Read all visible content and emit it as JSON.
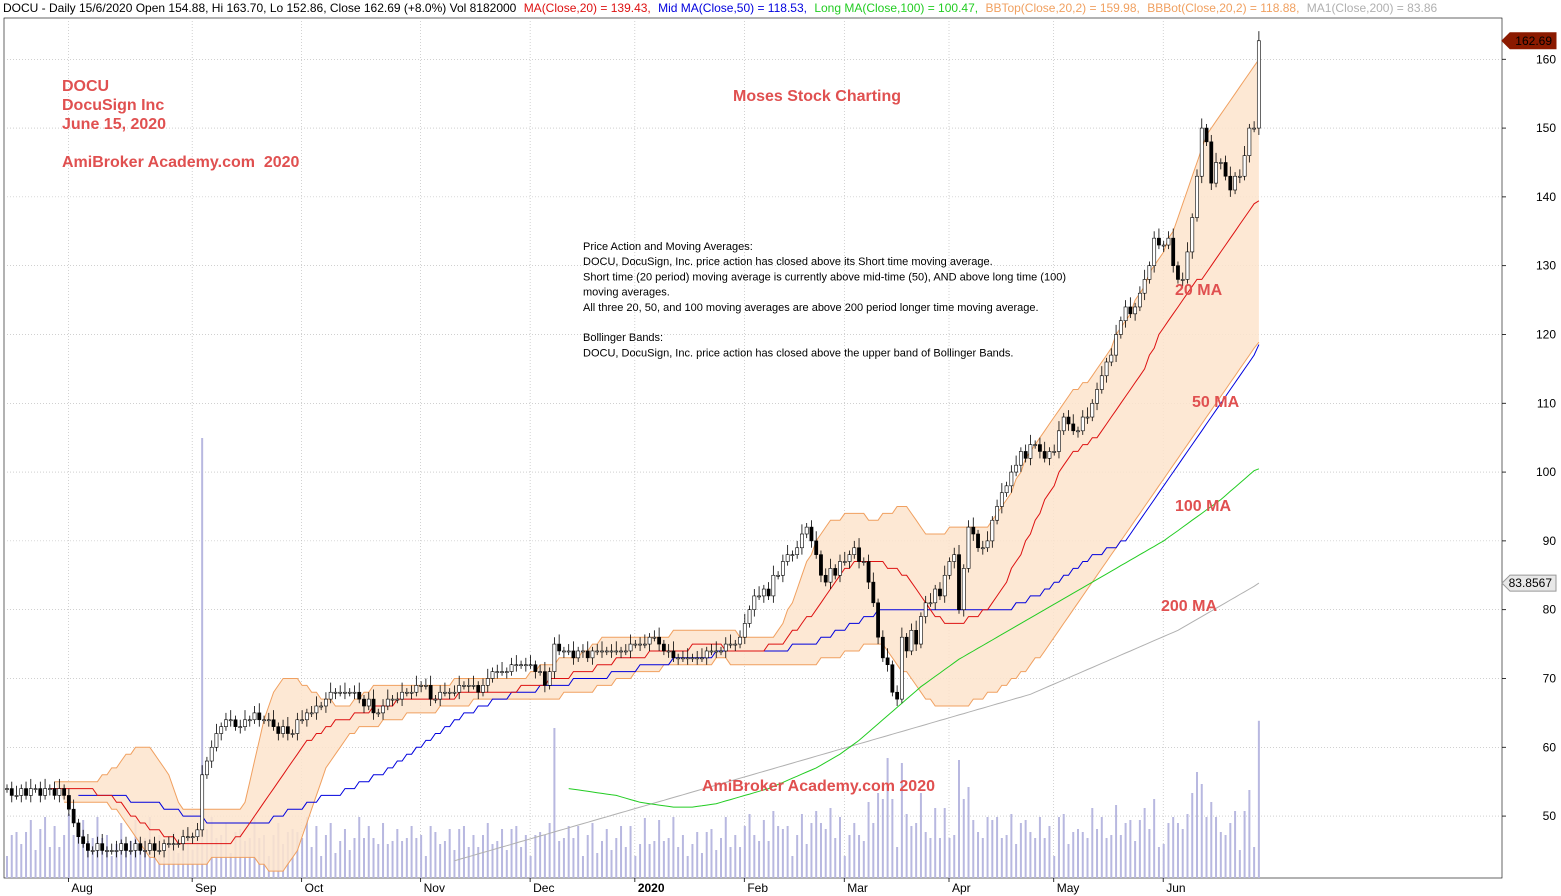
{
  "chart_data": {
    "type": "candlestick",
    "symbol": "DOCU",
    "header": {
      "prefix": "DOCU - Daily 15/6/2020 Open 154.88, Hi 163.70, Lo 152.86, Close 162.69 (+8.0%) Vol 8182000",
      "ma20": "MA(Close,20) = 139.43,",
      "ma50": "Mid MA(Close,50) = 118.53,",
      "ma100": "Long MA(Close,100) = 100.47,",
      "bbtop": "BBTop(Close,20,2) = 159.98,",
      "bbbot": "BBBot(Close,20,2) = 118.88,",
      "ma200": "MA1(Close,200) = 83.86"
    },
    "titles": {
      "symbol": "DOCU",
      "company": "DocuSign Inc",
      "date": "June 15, 2020",
      "site": "AmiBroker Academy.com  2020",
      "brand": "Moses Stock Charting",
      "watermark": "AmiBroker Academy.com 2020"
    },
    "notes": [
      "Price Action and Moving Averages:",
      "DOCU, DocuSign, Inc. price action has closed above its Short time moving average.",
      "Short time (20 period)  moving average is currently above mid-time (50), AND above long time (100)",
      "moving averages.",
      " All three 20, 50, and 100 moving averages are above 200 period longer time moving average.",
      "",
      "Bollinger Bands:",
      "DOCU, DocuSign, Inc. price action has closed above the upper band of Bollinger Bands."
    ],
    "line_labels": [
      "20 MA",
      "50 MA",
      "100 MA",
      "200 MA"
    ],
    "price_badges": [
      {
        "label": "162.69",
        "value": 162.69
      },
      {
        "label": "83.8567",
        "value": 83.8567
      }
    ],
    "y_axis": {
      "ticks": [
        50,
        60,
        70,
        80,
        90,
        100,
        110,
        120,
        130,
        140,
        150,
        160
      ],
      "ylim": [
        41,
        166
      ]
    },
    "x_axis": {
      "labels": [
        "Aug",
        "Sep",
        "Oct",
        "Nov",
        "Dec",
        "2020",
        "Feb",
        "Mar",
        "Apr",
        "May",
        "Jun"
      ],
      "label_bars": [
        15,
        41,
        64,
        89,
        112,
        134,
        157,
        178,
        200,
        222,
        245
      ]
    },
    "colors": {
      "ma20": "#dd1111",
      "ma50": "#0000dd",
      "ma100": "#22cc22",
      "ma200": "#b0b0b0",
      "bbtop": "#f0a060",
      "bbbot": "#f0a060",
      "band_fill": "#fde4cc",
      "volume": "#b8b8e0",
      "up_candle": "#ffffff",
      "down_candle": "#000000",
      "grid": "#b4b4b4"
    },
    "closes": [
      54,
      53,
      53,
      54,
      53,
      54,
      54,
      53,
      54,
      54,
      53,
      54,
      53,
      51,
      49,
      47,
      46,
      45,
      45,
      46,
      45,
      45,
      45,
      45,
      46,
      45,
      45,
      46,
      45,
      45,
      46,
      45,
      45,
      46,
      46,
      46,
      46,
      47,
      47,
      47,
      48,
      56,
      58,
      60,
      62,
      63,
      64,
      64,
      63,
      63,
      64,
      64,
      65,
      64,
      64,
      64,
      63,
      62,
      63,
      62,
      62,
      64,
      64,
      65,
      65,
      66,
      66,
      67,
      68,
      68,
      68,
      68,
      68,
      68,
      67,
      66,
      67,
      65,
      65,
      66,
      67,
      67,
      67,
      68,
      68,
      68,
      69,
      69,
      69,
      67,
      67,
      68,
      68,
      68,
      68,
      69,
      69,
      69,
      69,
      68,
      69,
      70,
      71,
      71,
      71,
      71,
      72,
      72,
      72,
      72,
      72,
      71,
      71,
      69,
      71,
      75,
      74,
      74,
      74,
      73,
      74,
      74,
      73,
      74,
      74,
      74,
      74,
      74,
      74,
      74,
      74,
      75,
      75,
      75,
      75,
      76,
      76,
      75,
      74,
      74,
      73,
      73,
      73,
      73,
      73,
      73,
      73,
      74,
      74,
      74,
      74,
      75,
      75,
      75,
      76,
      78,
      80,
      82,
      82,
      83,
      82,
      85,
      85,
      87,
      88,
      88,
      89,
      91,
      92,
      90,
      88,
      85,
      84,
      86,
      85,
      87,
      87,
      88,
      89,
      87,
      87,
      84,
      81,
      76,
      73,
      72,
      68,
      67,
      76,
      74,
      77,
      75,
      79,
      81,
      81,
      83,
      82,
      85,
      87,
      88,
      80,
      86,
      92,
      91,
      89,
      89,
      90,
      93,
      95,
      97,
      98,
      100,
      101,
      103,
      102,
      104,
      104,
      103,
      102,
      103,
      103,
      106,
      108,
      107,
      106,
      106,
      108,
      108,
      110,
      112,
      114,
      116,
      117,
      120,
      122,
      124,
      123,
      124,
      126,
      128,
      130,
      134,
      133,
      133,
      134,
      130,
      128,
      128,
      132,
      137,
      143,
      150,
      148,
      142,
      145,
      145,
      143,
      141,
      143,
      143,
      146,
      150,
      150,
      162.69
    ],
    "ma20": [
      54,
      54,
      54,
      54,
      54,
      54,
      54,
      54,
      54,
      54,
      53,
      53,
      53,
      53,
      52,
      52,
      51,
      50,
      50,
      49,
      49,
      48,
      48,
      48,
      47,
      47,
      47,
      46,
      46,
      46,
      46,
      46,
      46,
      46,
      46,
      46,
      46,
      46,
      46,
      47,
      47,
      48,
      49,
      50,
      51,
      52,
      53,
      54,
      55,
      56,
      57,
      58,
      59,
      60,
      61,
      61,
      62,
      62,
      63,
      63,
      64,
      64,
      64,
      64,
      65,
      65,
      65,
      65,
      66,
      66,
      66,
      66,
      66,
      67,
      67,
      67,
      67,
      67,
      67,
      67,
      67,
      67,
      67,
      67,
      67,
      67,
      68,
      68,
      68,
      68,
      68,
      68,
      68,
      68,
      68,
      68,
      68,
      68,
      68,
      69,
      69,
      69,
      69,
      69,
      69,
      70,
      70,
      70,
      70,
      70,
      71,
      71,
      71,
      71,
      71,
      72,
      72,
      72,
      72,
      73,
      73,
      73,
      73,
      73,
      73,
      73,
      74,
      74,
      74,
      74,
      74,
      74,
      74,
      74,
      74,
      75,
      75,
      75,
      75,
      75,
      75,
      75,
      74,
      74,
      74,
      74,
      74,
      74,
      74,
      74,
      74,
      75,
      75,
      75,
      75,
      76,
      77,
      77,
      78,
      79,
      79,
      80,
      81,
      82,
      83,
      84,
      85,
      86,
      86,
      87,
      87,
      87,
      87,
      87,
      87,
      87,
      86,
      86,
      86,
      85,
      85,
      84,
      83,
      82,
      81,
      80,
      79,
      79,
      78,
      78,
      78,
      78,
      78,
      79,
      79,
      79,
      80,
      80,
      81,
      82,
      83,
      84,
      86,
      87,
      88,
      90,
      91,
      93,
      94,
      96,
      97,
      98,
      100,
      101,
      102,
      103,
      103,
      104,
      104,
      105,
      105,
      106,
      107,
      108,
      109,
      110,
      111,
      112,
      113,
      114,
      115,
      117,
      118,
      120,
      121,
      122,
      123,
      124,
      125,
      126,
      127,
      128,
      128,
      129,
      130,
      131,
      132,
      133,
      134,
      135,
      136,
      137,
      138,
      139,
      139.43
    ],
    "ma50": [
      53,
      53,
      53,
      53,
      53,
      53,
      53,
      53,
      53,
      53,
      53,
      52,
      52,
      52,
      52,
      52,
      52,
      52,
      51,
      51,
      51,
      51,
      50,
      50,
      50,
      50,
      50,
      49,
      49,
      49,
      49,
      49,
      49,
      49,
      49,
      49,
      49,
      49,
      49,
      49,
      49,
      50,
      50,
      50,
      51,
      51,
      51,
      51,
      52,
      52,
      52,
      53,
      53,
      53,
      53,
      53,
      54,
      54,
      54,
      55,
      55,
      55,
      56,
      56,
      56,
      57,
      57,
      58,
      58,
      59,
      59,
      60,
      60,
      61,
      61,
      62,
      62,
      63,
      63,
      64,
      64,
      65,
      65,
      65,
      66,
      66,
      66,
      67,
      67,
      67,
      67,
      68,
      68,
      68,
      68,
      68,
      68,
      69,
      69,
      69,
      69,
      69,
      69,
      69,
      70,
      70,
      70,
      70,
      70,
      70,
      70,
      70,
      71,
      71,
      71,
      71,
      71,
      71,
      72,
      72,
      72,
      72,
      72,
      72,
      72,
      73,
      73,
      73,
      73,
      73,
      73,
      73,
      73,
      73,
      74,
      74,
      74,
      74,
      74,
      74,
      74,
      74,
      74,
      74,
      74,
      74,
      74,
      74,
      74,
      74,
      75,
      75,
      75,
      75,
      75,
      75,
      76,
      76,
      76,
      77,
      77,
      77,
      78,
      78,
      78,
      79,
      79,
      79,
      80,
      80,
      80,
      80,
      80,
      80,
      80,
      80,
      80,
      80,
      80,
      80,
      80,
      80,
      80,
      80,
      80,
      80,
      80,
      80,
      80,
      80,
      80,
      80,
      80,
      80,
      80,
      80,
      80,
      81,
      81,
      81,
      82,
      82,
      82,
      83,
      83,
      84,
      84,
      85,
      85,
      86,
      86,
      87,
      87,
      88,
      88,
      88,
      89,
      89,
      89,
      90,
      90,
      91,
      92,
      93,
      94,
      95,
      96,
      97,
      98,
      99,
      100,
      101,
      102,
      103,
      104,
      105,
      106,
      107,
      108,
      109,
      110,
      111,
      112,
      113,
      114,
      115,
      116,
      117,
      118.53
    ],
    "ma100": [
      54,
      53.9,
      53.8,
      53.7,
      53.6,
      53.5,
      53.4,
      53.3,
      53.2,
      53.1,
      53,
      52.8,
      52.6,
      52.4,
      52.2,
      52,
      51.9,
      51.8,
      51.7,
      51.6,
      51.5,
      51.4,
      51.3,
      51.3,
      51.3,
      51.3,
      51.3,
      51.4,
      51.5,
      51.6,
      51.7,
      51.8,
      52,
      52.2,
      52.4,
      52.6,
      52.8,
      53,
      53.2,
      53.4,
      53.6,
      53.8,
      54,
      54.3,
      54.6,
      54.9,
      55.2,
      55.5,
      55.8,
      56.1,
      56.4,
      56.7,
      57,
      57.4,
      57.8,
      58.2,
      58.6,
      59,
      59.5,
      60,
      60.5,
      61,
      61.6,
      62.2,
      62.8,
      63.4,
      64,
      64.6,
      65.2,
      65.8,
      66.4,
      67,
      67.6,
      68.2,
      68.8,
      69.3,
      69.8,
      70.3,
      70.8,
      71.3,
      71.8,
      72.3,
      72.8,
      73.2,
      73.6,
      74,
      74.4,
      74.8,
      75.2,
      75.6,
      76,
      76.4,
      76.8,
      77.2,
      77.6,
      78,
      78.4,
      78.8,
      79.2,
      79.6,
      80,
      80.4,
      80.8,
      81.2,
      81.6,
      82,
      82.4,
      82.8,
      83.2,
      83.6,
      84,
      84.4,
      84.8,
      85.2,
      85.6,
      86,
      86.4,
      86.8,
      87.2,
      87.6,
      88,
      88.4,
      88.8,
      89.2,
      89.6,
      90,
      90.5,
      91,
      91.5,
      92,
      92.5,
      93,
      93.5,
      94,
      94.5,
      95,
      95.5,
      96,
      96.6,
      97.2,
      97.8,
      98.4,
      99,
      99.6,
      100.2,
      100.47
    ],
    "ma200": [
      43.5,
      43.7,
      43.9,
      44.1,
      44.3,
      44.5,
      44.7,
      44.9,
      45.1,
      45.3,
      45.5,
      45.7,
      45.9,
      46.1,
      46.3,
      46.5,
      46.7,
      46.9,
      47.1,
      47.3,
      47.5,
      47.7,
      47.9,
      48.1,
      48.3,
      48.5,
      48.7,
      48.9,
      49.1,
      49.3,
      49.5,
      49.7,
      49.9,
      50.1,
      50.3,
      50.5,
      50.7,
      50.9,
      51.1,
      51.3,
      51.5,
      51.7,
      51.9,
      52.1,
      52.3,
      52.5,
      52.7,
      52.9,
      53.1,
      53.3,
      53.5,
      53.7,
      53.9,
      54.1,
      54.3,
      54.5,
      54.7,
      54.9,
      55.1,
      55.3,
      55.5,
      55.7,
      55.9,
      56.1,
      56.3,
      56.5,
      56.7,
      56.9,
      57.1,
      57.3,
      57.5,
      57.7,
      57.9,
      58.1,
      58.3,
      58.5,
      58.7,
      58.9,
      59.1,
      59.3,
      59.5,
      59.7,
      59.9,
      60.1,
      60.3,
      60.5,
      60.7,
      60.9,
      61.1,
      61.3,
      61.5,
      61.7,
      61.9,
      62.1,
      62.3,
      62.5,
      62.7,
      62.9,
      63.1,
      63.3,
      63.5,
      63.7,
      63.9,
      64.1,
      64.3,
      64.5,
      64.7,
      64.9,
      65.1,
      65.3,
      65.5,
      65.7,
      65.9,
      66.1,
      66.3,
      66.5,
      66.7,
      66.9,
      67.1,
      67.3,
      67.5,
      67.7,
      68,
      68.3,
      68.6,
      68.9,
      69.2,
      69.5,
      69.8,
      70.1,
      70.4,
      70.7,
      71,
      71.3,
      71.6,
      71.9,
      72.2,
      72.5,
      72.8,
      73.1,
      73.4,
      73.7,
      74,
      74.3,
      74.6,
      74.9,
      75.2,
      75.5,
      75.8,
      76.1,
      76.4,
      76.7,
      77,
      77.4,
      77.8,
      78.2,
      78.6,
      79,
      79.4,
      79.8,
      80.2,
      80.6,
      81,
      81.4,
      81.8,
      82.2,
      82.6,
      83,
      83.4,
      83.86
    ],
    "bbtop": [
      55,
      55,
      55,
      55,
      55,
      55,
      55,
      55,
      55,
      55,
      56,
      56,
      57,
      57,
      58,
      59,
      59,
      60,
      60,
      60,
      60,
      59,
      58,
      57,
      56,
      54,
      52,
      51,
      51,
      51,
      51,
      51,
      51,
      51,
      51,
      51,
      51,
      51,
      51,
      51,
      52,
      55,
      58,
      61,
      64,
      66,
      68,
      69,
      70,
      70,
      70,
      70,
      69,
      69,
      68,
      68,
      67,
      67,
      67,
      66,
      66,
      66,
      66,
      67,
      67,
      68,
      68,
      69,
      69,
      69,
      69,
      69,
      69,
      69,
      69,
      69,
      69,
      69,
      69,
      69,
      69,
      69,
      69,
      69,
      70,
      70,
      70,
      70,
      70,
      70,
      70,
      70,
      70,
      70,
      70,
      70,
      70,
      70,
      70,
      70,
      71,
      71,
      72,
      72,
      72,
      72,
      73,
      73,
      73,
      73,
      73,
      74,
      74,
      75,
      75,
      76,
      76,
      76,
      76,
      76,
      76,
      76,
      76,
      76,
      76,
      76,
      76,
      76,
      76,
      76,
      77,
      77,
      77,
      77,
      77,
      77,
      77,
      77,
      77,
      77,
      77,
      77,
      77,
      77,
      76,
      76,
      76,
      76,
      76,
      76,
      76,
      76,
      77,
      78,
      80,
      81,
      83,
      85,
      87,
      88,
      90,
      91,
      92,
      93,
      93,
      93,
      94,
      94,
      94,
      94,
      94,
      93,
      93,
      93,
      94,
      94,
      94,
      95,
      95,
      95,
      94,
      93,
      92,
      91,
      91,
      91,
      91,
      91,
      92,
      92,
      92,
      92,
      92,
      92,
      92,
      92,
      92,
      93,
      94,
      95,
      96,
      97,
      99,
      100,
      102,
      103,
      104,
      105,
      106,
      107,
      108,
      109,
      110,
      111,
      112,
      112,
      113,
      113,
      114,
      115,
      116,
      117,
      118,
      120,
      121,
      122,
      123,
      125,
      126,
      127,
      129,
      130,
      131,
      132,
      134,
      135,
      137,
      139,
      141,
      143,
      145,
      147,
      149,
      150,
      151,
      152,
      153,
      154,
      155,
      156,
      157,
      158,
      159,
      159.98
    ],
    "bbbot": [
      52,
      52,
      52,
      52,
      52,
      52,
      52,
      52,
      52,
      52,
      51,
      51,
      50,
      49,
      48,
      47,
      46,
      45,
      44,
      44,
      43,
      43,
      43,
      43,
      43,
      43,
      43,
      43,
      43,
      43,
      43,
      44,
      44,
      44,
      44,
      44,
      44,
      44,
      44,
      44,
      44,
      43,
      43,
      42,
      42,
      42,
      42,
      43,
      44,
      45,
      47,
      49,
      51,
      53,
      55,
      57,
      58,
      59,
      60,
      61,
      62,
      62,
      63,
      63,
      63,
      63,
      63,
      64,
      64,
      64,
      64,
      64,
      65,
      65,
      65,
      65,
      65,
      65,
      65,
      66,
      66,
      66,
      66,
      66,
      66,
      66,
      67,
      67,
      67,
      67,
      67,
      67,
      67,
      67,
      67,
      67,
      67,
      67,
      67,
      67,
      67,
      67,
      67,
      67,
      67,
      68,
      68,
      68,
      68,
      68,
      68,
      68,
      69,
      69,
      69,
      69,
      70,
      70,
      70,
      70,
      71,
      71,
      71,
      71,
      71,
      71,
      72,
      72,
      72,
      72,
      72,
      72,
      72,
      72,
      72,
      72,
      72,
      73,
      73,
      73,
      72,
      72,
      72,
      72,
      72,
      72,
      72,
      72,
      72,
      72,
      72,
      72,
      72,
      72,
      72,
      72,
      72,
      72,
      72,
      73,
      73,
      73,
      73,
      73,
      74,
      74,
      74,
      74,
      75,
      75,
      75,
      75,
      75,
      74,
      73,
      72,
      71,
      71,
      70,
      69,
      68,
      67,
      67,
      66,
      66,
      66,
      66,
      66,
      66,
      66,
      66,
      67,
      67,
      67,
      68,
      68,
      68,
      69,
      69,
      70,
      70,
      71,
      71,
      72,
      73,
      73,
      74,
      75,
      76,
      77,
      78,
      79,
      80,
      81,
      82,
      83,
      84,
      85,
      86,
      87,
      88,
      89,
      90,
      91,
      92,
      93,
      94,
      95,
      96,
      97,
      98,
      99,
      100,
      101,
      102,
      103,
      104,
      105,
      106,
      107,
      108,
      109,
      110,
      111,
      112,
      113,
      114,
      115,
      116,
      117,
      118,
      118.88
    ]
  }
}
